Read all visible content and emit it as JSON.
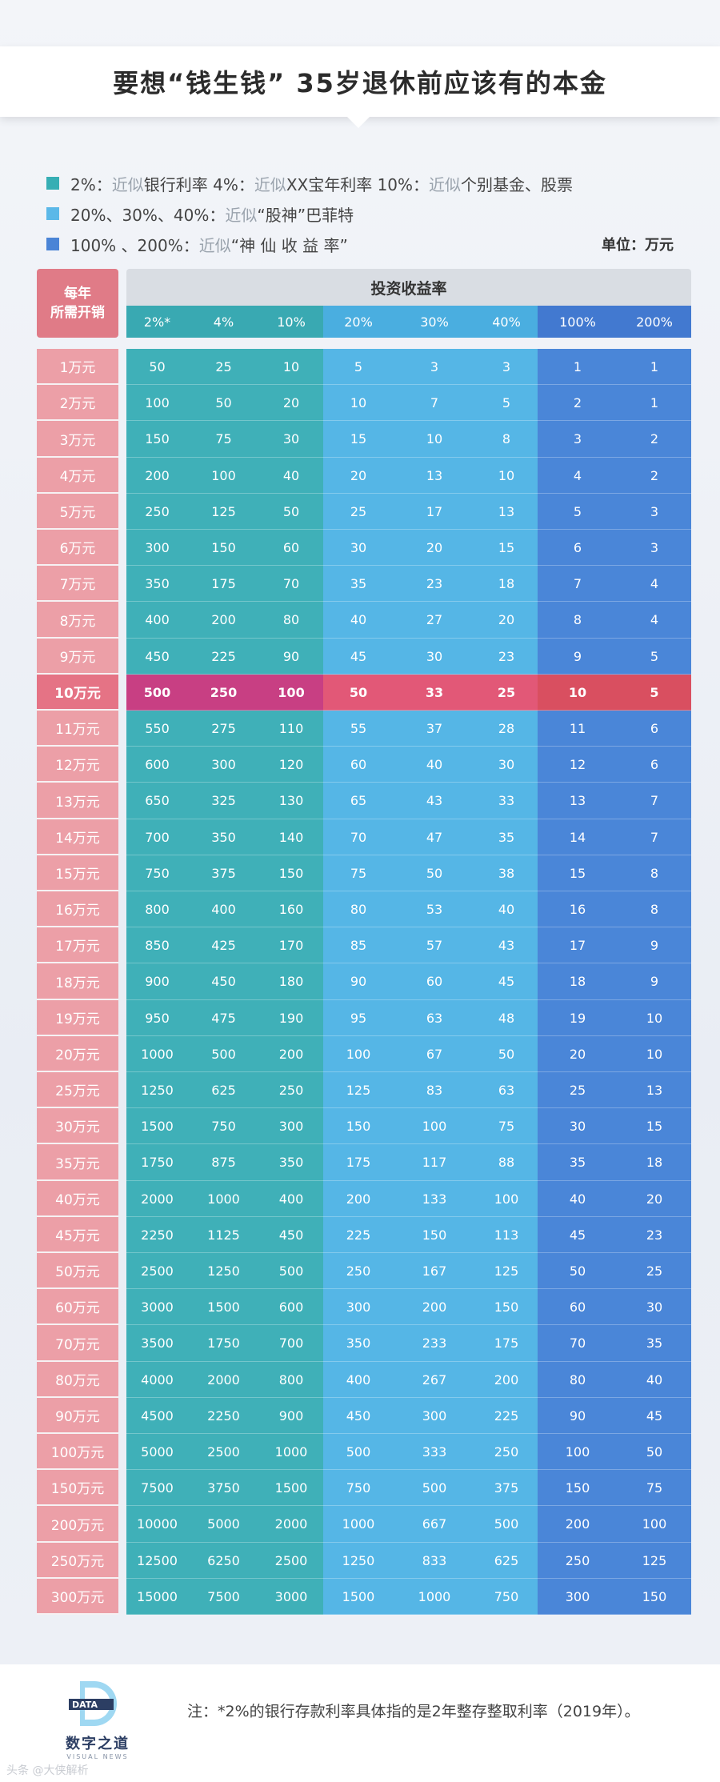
{
  "title": "要想“钱生钱” 35岁退休前应该有的本金",
  "legend": [
    {
      "color": "#36aeb4",
      "parts": [
        {
          "t": "2%：",
          "m": false
        },
        {
          "t": "近似",
          "m": true
        },
        {
          "t": "银行利率    4%：",
          "m": false
        },
        {
          "t": "近似",
          "m": true
        },
        {
          "t": "XX宝年利率    10%：",
          "m": false
        },
        {
          "t": "近似",
          "m": true
        },
        {
          "t": "个别基金、股票",
          "m": false
        }
      ]
    },
    {
      "color": "#5bb8e8",
      "parts": [
        {
          "t": "20%、30%、40%：",
          "m": false
        },
        {
          "t": "近似",
          "m": true
        },
        {
          "t": "“股神”巴菲特",
          "m": false
        }
      ]
    },
    {
      "color": "#4a84d6",
      "parts": [
        {
          "t": "100%  、200%：",
          "m": false
        },
        {
          "t": "近似",
          "m": true
        },
        {
          "t": "“神 仙 收 益 率”",
          "m": false
        }
      ]
    }
  ],
  "unit_label": "单位：万元",
  "header_left_line1": "每年",
  "header_left_line2": "所需开销",
  "header_top": "投资收益率",
  "colors": {
    "teal": "#3fb0b8",
    "sky": "#55b6e6",
    "blue": "#4a86d8",
    "teal_hl": "#c83f83",
    "sky_hl": "#e25877",
    "blue_hl": "#d94f60",
    "label": "#ec9fa7"
  },
  "footnote": "注：*2%的银行存款利率具体指的是2年整存整取利率（2019年）。",
  "logo_text": "DATA",
  "logo_name": "数字之道",
  "logo_sub": "VISUAL NEWS",
  "watermark": "头条 @大侠解析",
  "chart_data": {
    "type": "table",
    "title": "要想“钱生钱” 35岁退休前应该有的本金",
    "unit": "单位：万元",
    "row_header": "每年所需开销",
    "column_group_header": "投资收益率",
    "columns": [
      "2%*",
      "4%",
      "10%",
      "20%",
      "30%",
      "40%",
      "100%",
      "200%"
    ],
    "highlight_row": "10万元",
    "rows": [
      {
        "label": "1万元",
        "values": [
          50,
          25,
          10,
          5,
          3,
          3,
          1,
          1
        ]
      },
      {
        "label": "2万元",
        "values": [
          100,
          50,
          20,
          10,
          7,
          5,
          2,
          1
        ]
      },
      {
        "label": "3万元",
        "values": [
          150,
          75,
          30,
          15,
          10,
          8,
          3,
          2
        ]
      },
      {
        "label": "4万元",
        "values": [
          200,
          100,
          40,
          20,
          13,
          10,
          4,
          2
        ]
      },
      {
        "label": "5万元",
        "values": [
          250,
          125,
          50,
          25,
          17,
          13,
          5,
          3
        ]
      },
      {
        "label": "6万元",
        "values": [
          300,
          150,
          60,
          30,
          20,
          15,
          6,
          3
        ]
      },
      {
        "label": "7万元",
        "values": [
          350,
          175,
          70,
          35,
          23,
          18,
          7,
          4
        ]
      },
      {
        "label": "8万元",
        "values": [
          400,
          200,
          80,
          40,
          27,
          20,
          8,
          4
        ]
      },
      {
        "label": "9万元",
        "values": [
          450,
          225,
          90,
          45,
          30,
          23,
          9,
          5
        ]
      },
      {
        "label": "10万元",
        "values": [
          500,
          250,
          100,
          50,
          33,
          25,
          10,
          5
        ]
      },
      {
        "label": "11万元",
        "values": [
          550,
          275,
          110,
          55,
          37,
          28,
          11,
          6
        ]
      },
      {
        "label": "12万元",
        "values": [
          600,
          300,
          120,
          60,
          40,
          30,
          12,
          6
        ]
      },
      {
        "label": "13万元",
        "values": [
          650,
          325,
          130,
          65,
          43,
          33,
          13,
          7
        ]
      },
      {
        "label": "14万元",
        "values": [
          700,
          350,
          140,
          70,
          47,
          35,
          14,
          7
        ]
      },
      {
        "label": "15万元",
        "values": [
          750,
          375,
          150,
          75,
          50,
          38,
          15,
          8
        ]
      },
      {
        "label": "16万元",
        "values": [
          800,
          400,
          160,
          80,
          53,
          40,
          16,
          8
        ]
      },
      {
        "label": "17万元",
        "values": [
          850,
          425,
          170,
          85,
          57,
          43,
          17,
          9
        ]
      },
      {
        "label": "18万元",
        "values": [
          900,
          450,
          180,
          90,
          60,
          45,
          18,
          9
        ]
      },
      {
        "label": "19万元",
        "values": [
          950,
          475,
          190,
          95,
          63,
          48,
          19,
          10
        ]
      },
      {
        "label": "20万元",
        "values": [
          1000,
          500,
          200,
          100,
          67,
          50,
          20,
          10
        ]
      },
      {
        "label": "25万元",
        "values": [
          1250,
          625,
          250,
          125,
          83,
          63,
          25,
          13
        ]
      },
      {
        "label": "30万元",
        "values": [
          1500,
          750,
          300,
          150,
          100,
          75,
          30,
          15
        ]
      },
      {
        "label": "35万元",
        "values": [
          1750,
          875,
          350,
          175,
          117,
          88,
          35,
          18
        ]
      },
      {
        "label": "40万元",
        "values": [
          2000,
          1000,
          400,
          200,
          133,
          100,
          40,
          20
        ]
      },
      {
        "label": "45万元",
        "values": [
          2250,
          1125,
          450,
          225,
          150,
          113,
          45,
          23
        ]
      },
      {
        "label": "50万元",
        "values": [
          2500,
          1250,
          500,
          250,
          167,
          125,
          50,
          25
        ]
      },
      {
        "label": "60万元",
        "values": [
          3000,
          1500,
          600,
          300,
          200,
          150,
          60,
          30
        ]
      },
      {
        "label": "70万元",
        "values": [
          3500,
          1750,
          700,
          350,
          233,
          175,
          70,
          35
        ]
      },
      {
        "label": "80万元",
        "values": [
          4000,
          2000,
          800,
          400,
          267,
          200,
          80,
          40
        ]
      },
      {
        "label": "90万元",
        "values": [
          4500,
          2250,
          900,
          450,
          300,
          225,
          90,
          45
        ]
      },
      {
        "label": "100万元",
        "values": [
          5000,
          2500,
          1000,
          500,
          333,
          250,
          100,
          50
        ]
      },
      {
        "label": "150万元",
        "values": [
          7500,
          3750,
          1500,
          750,
          500,
          375,
          150,
          75
        ]
      },
      {
        "label": "200万元",
        "values": [
          10000,
          5000,
          2000,
          1000,
          667,
          500,
          200,
          100
        ]
      },
      {
        "label": "250万元",
        "values": [
          12500,
          6250,
          2500,
          1250,
          833,
          625,
          250,
          125
        ]
      },
      {
        "label": "300万元",
        "values": [
          15000,
          7500,
          3000,
          1500,
          1000,
          750,
          300,
          150
        ]
      }
    ]
  }
}
